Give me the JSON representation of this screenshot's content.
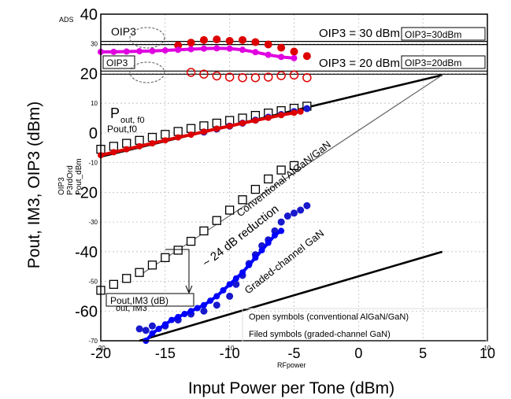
{
  "chart_data": {
    "type": "scatter",
    "xlabel": "Input Power per Tone (dBm)",
    "ylabel": "Pout, IM3, OIP3 (dBm)",
    "xlim": [
      -20,
      10
    ],
    "ylim": [
      -70,
      40
    ],
    "grid": true,
    "x_ticks": [
      {
        "value": -20,
        "label": "-20"
      },
      {
        "value": -15,
        "label": "-15"
      },
      {
        "value": -10,
        "label": "-10"
      },
      {
        "value": -5,
        "label": "-5"
      },
      {
        "value": 0,
        "label": "0"
      },
      {
        "value": 5,
        "label": "5"
      },
      {
        "value": 10,
        "label": "10"
      }
    ],
    "y_ticks_large": [
      {
        "value": 40,
        "label": "40"
      },
      {
        "value": 20,
        "label": "20"
      },
      {
        "value": 0,
        "label": "0"
      },
      {
        "value": -20,
        "label": "-20"
      },
      {
        "value": -40,
        "label": "-40"
      },
      {
        "value": -60,
        "label": "-60"
      }
    ],
    "y_ticks_small": [
      {
        "value": 30,
        "label": "30"
      },
      {
        "value": 10,
        "label": "10"
      },
      {
        "value": -10,
        "label": "-10"
      },
      {
        "value": -30,
        "label": "-30"
      },
      {
        "value": -50,
        "label": "-50"
      },
      {
        "value": -70,
        "label": "-70"
      }
    ],
    "x_tick_small": [
      {
        "value": -20,
        "label": "-20"
      },
      {
        "value": -10,
        "label": "-10"
      },
      {
        "value": 10,
        "label": "10"
      }
    ],
    "inner_xlabel": "RFpower",
    "legend_labels": [
      {
        "text": "OIP3",
        "color": "#e000e0"
      },
      {
        "text": "P3rdOrd",
        "color": "#0000ff"
      },
      {
        "text": "Pout_dBm",
        "color": "#dd0000"
      }
    ],
    "series": [
      {
        "name": "OIP3",
        "color": "#e000e0",
        "points": [
          [
            -20,
            27.3
          ],
          [
            -19,
            27.3
          ],
          [
            -18,
            27.4
          ],
          [
            -17,
            27.5
          ],
          [
            -16,
            27.6
          ],
          [
            -15,
            27.8
          ],
          [
            -14,
            28.0
          ],
          [
            -13,
            28.2
          ],
          [
            -12,
            28.4
          ],
          [
            -11,
            28.5
          ],
          [
            -10,
            28.4
          ],
          [
            -9,
            28.0
          ],
          [
            -8,
            27.2
          ],
          [
            -7,
            26.3
          ],
          [
            -6,
            25.6
          ],
          [
            -5,
            25.2
          ]
        ]
      },
      {
        "name": "P3rdOrd",
        "color": "#0000ff",
        "points": [
          [
            -16.5,
            -70
          ],
          [
            -16,
            -67.5
          ],
          [
            -15.5,
            -66
          ],
          [
            -15,
            -64.5
          ],
          [
            -14.5,
            -63
          ],
          [
            -14,
            -62
          ],
          [
            -13.5,
            -61
          ],
          [
            -13,
            -60
          ],
          [
            -12.5,
            -59
          ],
          [
            -12,
            -58
          ],
          [
            -11.5,
            -56.5
          ],
          [
            -11,
            -55
          ],
          [
            -10.5,
            -53
          ],
          [
            -10,
            -51
          ],
          [
            -9.5,
            -49
          ],
          [
            -9,
            -47
          ],
          [
            -8.5,
            -44.5
          ],
          [
            -8,
            -42
          ],
          [
            -7.5,
            -39.5
          ],
          [
            -7,
            -37
          ],
          [
            -6.5,
            -34.5
          ],
          [
            -6,
            -33
          ]
        ]
      },
      {
        "name": "Pout_dBm",
        "color": "#dd0000",
        "points": [
          [
            -20,
            -7.5
          ],
          [
            -19,
            -6.5
          ],
          [
            -18,
            -5.5
          ],
          [
            -17,
            -4.5
          ],
          [
            -16,
            -3.5
          ],
          [
            -15,
            -2.5
          ],
          [
            -14,
            -1.5
          ],
          [
            -13,
            -0.6
          ],
          [
            -12,
            0.4
          ],
          [
            -11,
            1.4
          ],
          [
            -10,
            2.3
          ],
          [
            -9,
            3.3
          ],
          [
            -8,
            4.2
          ],
          [
            -7,
            5.1
          ],
          [
            -6,
            6.0
          ],
          [
            -5,
            6.8
          ],
          [
            -4.5,
            7.2
          ]
        ]
      }
    ],
    "overlay_markers": {
      "red_filled_oip3": [
        [
          -14,
          29.5
        ],
        [
          -13,
          30.4
        ],
        [
          -12,
          31.3
        ],
        [
          -11,
          31.5
        ],
        [
          -10,
          31.0
        ],
        [
          -9,
          31.3
        ],
        [
          -8,
          30.6
        ],
        [
          -7,
          29.8
        ],
        [
          -6,
          28.7
        ],
        [
          -5,
          27.4
        ],
        [
          -4,
          25.9
        ]
      ],
      "red_open_oip3": [
        [
          -13,
          20.4
        ],
        [
          -12,
          19.8
        ],
        [
          -11,
          19.2
        ],
        [
          -10,
          18.8
        ],
        [
          -9,
          18.6
        ],
        [
          -8,
          18.6
        ],
        [
          -7,
          18.8
        ],
        [
          -6,
          19.3
        ],
        [
          -5,
          19.5
        ],
        [
          -4,
          18.6
        ]
      ],
      "open_squares_pout": [
        [
          -20,
          -5.5
        ],
        [
          -19,
          -4.5
        ],
        [
          -18,
          -3.5
        ],
        [
          -17,
          -2.5
        ],
        [
          -16,
          -1.5
        ],
        [
          -15,
          -0.5
        ],
        [
          -14,
          0.5
        ],
        [
          -13,
          1.5
        ],
        [
          -12,
          2.4
        ],
        [
          -11,
          3.3
        ],
        [
          -10,
          4.2
        ],
        [
          -9,
          5.0
        ],
        [
          -8,
          5.9
        ],
        [
          -7,
          6.7
        ],
        [
          -6,
          7.5
        ],
        [
          -5,
          8.3
        ],
        [
          -4,
          9.0
        ]
      ],
      "open_squares_im3": [
        [
          -20,
          -53
        ],
        [
          -19,
          -51
        ],
        [
          -18,
          -49
        ],
        [
          -17,
          -47
        ],
        [
          -16,
          -44.5
        ],
        [
          -15,
          -42
        ],
        [
          -14,
          -39.5
        ],
        [
          -13,
          -36.5
        ],
        [
          -12,
          -33
        ],
        [
          -11,
          -29.5
        ],
        [
          -10,
          -26
        ],
        [
          -9,
          -22.5
        ],
        [
          -8,
          -19
        ],
        [
          -7,
          -15.5
        ],
        [
          -6,
          -12.5
        ],
        [
          -5,
          -11
        ]
      ],
      "blue_dots_pout": [
        [
          -12,
          0.3
        ],
        [
          -11,
          1.3
        ],
        [
          -10,
          2.3
        ],
        [
          -9,
          3.3
        ],
        [
          -8,
          4.3
        ],
        [
          -7,
          5.3
        ],
        [
          -6,
          6.2
        ],
        [
          -5,
          7.2
        ],
        [
          -4,
          8.2
        ]
      ],
      "blue_dots_im3": [
        [
          -17,
          -66
        ],
        [
          -16.5,
          -66.5
        ],
        [
          -16,
          -65
        ],
        [
          -15,
          -65
        ],
        [
          -14,
          -63
        ],
        [
          -13,
          -61
        ],
        [
          -12,
          -60
        ],
        [
          -11,
          -58
        ],
        [
          -10,
          -55
        ],
        [
          -9.5,
          -51
        ],
        [
          -9,
          -48
        ],
        [
          -8.5,
          -44
        ],
        [
          -8,
          -41
        ],
        [
          -7.5,
          -38
        ],
        [
          -7,
          -36
        ],
        [
          -6.5,
          -33
        ],
        [
          -6,
          -30
        ],
        [
          -5.5,
          -28
        ],
        [
          -5,
          -27
        ],
        [
          -4.5,
          -26
        ],
        [
          -4,
          -24.5
        ]
      ]
    },
    "reference_lines": [
      {
        "kind": "black",
        "from": [
          -20,
          -8
        ],
        "to": [
          6.5,
          19.5
        ]
      },
      {
        "kind": "black",
        "from": [
          -17,
          -70
        ],
        "to": [
          6.5,
          -40
        ]
      },
      {
        "kind": "gray",
        "from": [
          -17,
          -48
        ],
        "to": [
          6.5,
          19.5
        ]
      },
      {
        "kind": "black_double",
        "from": [
          -20,
          30.3
        ],
        "to": [
          10,
          30.3
        ]
      },
      {
        "kind": "black_double",
        "from": [
          -20,
          20.3
        ],
        "to": [
          10,
          20.3
        ]
      }
    ],
    "annotations": {
      "top_left_tag": "ADS",
      "oip3_30_label": "OIP3 = 30 dBm",
      "oip3_20_label": "OIP3 = 20 dBm",
      "oip3_30_box": "OIP3=30dBm",
      "oip3_20_box": "OIP3=20dBm",
      "oip3_top_left": "OIP3",
      "oip3_boxed": "OIP3",
      "pout_f0_big": "P",
      "pout_f0_sub": "out, f0",
      "pout_f0_small": "Pout,f0",
      "pout_im3_big": "P",
      "pout_im3_sub": "out, IM3",
      "pout_im3_box": "Pout,IM3 (dB)",
      "reduction": "~ 24 dB reduction",
      "conventional": "Conventional AlGaN/GaN",
      "graded": "Graded-channel GaN",
      "legend_open": "Open symbols (conventional AlGaN/GaN)",
      "legend_filled": "Filed symbols (graded-channel GaN)"
    }
  }
}
